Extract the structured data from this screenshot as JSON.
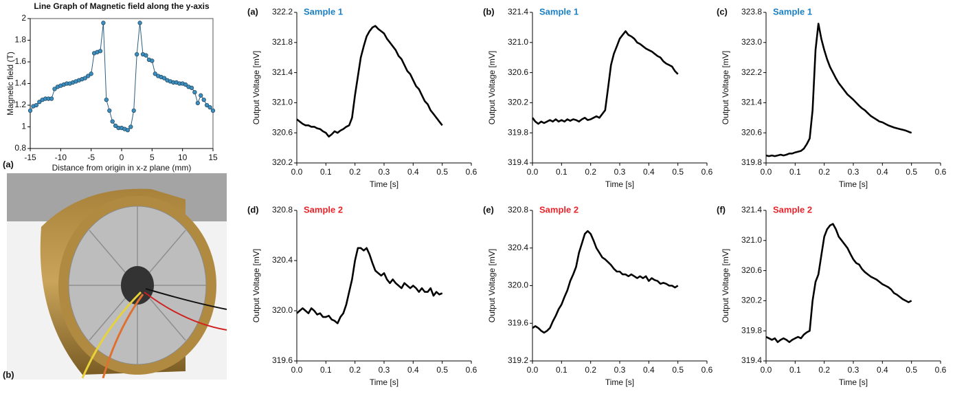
{
  "photo": {
    "label": "(b)"
  },
  "chart_data": [
    {
      "type": "line",
      "title": "Line Graph of Magnetic field along the y-axis",
      "panel_label": "(a)",
      "xlabel": "Distance from origin in x-z plane (mm)",
      "ylabel": "Magnetic field (T)",
      "xlim": [
        -15,
        15
      ],
      "xticks": [
        -15,
        -10,
        -5,
        0,
        5,
        10,
        15
      ],
      "ylim": [
        0.8,
        2
      ],
      "yticks": [
        0.8,
        1,
        1.2,
        1.4,
        1.6,
        1.8,
        2
      ],
      "color": "#3a8fc0",
      "marker": true,
      "box": true,
      "x": [
        -15,
        -14.5,
        -14,
        -13.5,
        -13,
        -12.5,
        -12,
        -11.5,
        -11,
        -10.5,
        -10,
        -9.5,
        -9,
        -8.5,
        -8,
        -7.5,
        -7,
        -6.5,
        -6,
        -5.5,
        -5,
        -4.5,
        -4,
        -3.5,
        -3,
        -2.5,
        -2,
        -1.5,
        -1,
        -0.5,
        0,
        0.5,
        1,
        1.5,
        2,
        2.5,
        3,
        3.5,
        4,
        4.5,
        5,
        5.5,
        6,
        6.5,
        7,
        7.5,
        8,
        8.5,
        9,
        9.5,
        10,
        10.5,
        11,
        11.5,
        12,
        12.5,
        13,
        13.5,
        14,
        14.5,
        15
      ],
      "values": [
        1.15,
        1.19,
        1.2,
        1.23,
        1.25,
        1.26,
        1.26,
        1.26,
        1.35,
        1.37,
        1.38,
        1.39,
        1.4,
        1.4,
        1.41,
        1.42,
        1.43,
        1.44,
        1.45,
        1.47,
        1.49,
        1.68,
        1.69,
        1.7,
        1.96,
        1.25,
        1.15,
        1.05,
        1.01,
        0.99,
        0.99,
        0.98,
        0.97,
        1.0,
        1.15,
        1.67,
        1.96,
        1.67,
        1.66,
        1.62,
        1.61,
        1.49,
        1.47,
        1.46,
        1.45,
        1.43,
        1.42,
        1.41,
        1.41,
        1.4,
        1.4,
        1.39,
        1.37,
        1.36,
        1.32,
        1.22,
        1.29,
        1.25,
        1.2,
        1.18,
        1.15
      ]
    },
    {
      "type": "line",
      "panel_label": "(a)",
      "annotation": {
        "text": "Sample 1",
        "color": "#1a7fc4"
      },
      "xlabel": "Time [s]",
      "ylabel": "Output Voltage [mV]",
      "color": "#000000",
      "xlim": [
        0,
        0.6
      ],
      "xticks": [
        {
          "value": 0,
          "label": "0.0"
        },
        0.1,
        0.2,
        0.3,
        0.4,
        0.5,
        0.6
      ],
      "ylim": [
        320.2,
        322.2
      ],
      "yticks": [
        320.2,
        320.6,
        {
          "value": 321,
          "label": "321.0"
        },
        321.4,
        321.8,
        322.2
      ],
      "x": [
        0,
        0.01,
        0.02,
        0.03,
        0.04,
        0.05,
        0.06,
        0.07,
        0.08,
        0.09,
        0.1,
        0.11,
        0.12,
        0.13,
        0.14,
        0.15,
        0.16,
        0.17,
        0.18,
        0.19,
        0.2,
        0.21,
        0.22,
        0.23,
        0.24,
        0.25,
        0.26,
        0.27,
        0.28,
        0.29,
        0.3,
        0.31,
        0.32,
        0.33,
        0.34,
        0.35,
        0.36,
        0.37,
        0.38,
        0.39,
        0.4,
        0.41,
        0.42,
        0.43,
        0.44,
        0.45,
        0.46,
        0.47,
        0.48,
        0.49,
        0.5
      ],
      "values": [
        320.78,
        320.75,
        320.72,
        320.7,
        320.7,
        320.68,
        320.68,
        320.66,
        320.65,
        320.62,
        320.6,
        320.55,
        320.58,
        320.62,
        320.6,
        320.63,
        320.65,
        320.68,
        320.7,
        320.8,
        321.1,
        321.35,
        321.6,
        321.75,
        321.88,
        321.95,
        322.0,
        322.02,
        321.98,
        321.95,
        321.92,
        321.85,
        321.8,
        321.75,
        321.7,
        321.62,
        321.58,
        321.5,
        321.42,
        321.38,
        321.3,
        321.22,
        321.18,
        321.1,
        321.02,
        320.98,
        320.9,
        320.85,
        320.8,
        320.75,
        320.7
      ]
    },
    {
      "type": "line",
      "panel_label": "(b)",
      "annotation": {
        "text": "Sample 1",
        "color": "#1a7fc4"
      },
      "xlabel": "Time [s]",
      "ylabel": "Output Voltage [mV]",
      "color": "#000000",
      "xlim": [
        0,
        0.6
      ],
      "xticks": [
        {
          "value": 0,
          "label": "0.0"
        },
        0.1,
        0.2,
        0.3,
        0.4,
        0.5,
        0.6
      ],
      "ylim": [
        319.4,
        321.4
      ],
      "yticks": [
        319.4,
        319.8,
        320.2,
        320.6,
        {
          "value": 321,
          "label": "321.0"
        },
        321.4
      ],
      "x": [
        0,
        0.01,
        0.02,
        0.03,
        0.04,
        0.05,
        0.06,
        0.07,
        0.08,
        0.09,
        0.1,
        0.11,
        0.12,
        0.13,
        0.14,
        0.15,
        0.16,
        0.17,
        0.18,
        0.19,
        0.2,
        0.21,
        0.22,
        0.23,
        0.24,
        0.25,
        0.26,
        0.27,
        0.28,
        0.29,
        0.3,
        0.31,
        0.32,
        0.33,
        0.34,
        0.35,
        0.36,
        0.37,
        0.38,
        0.39,
        0.4,
        0.41,
        0.42,
        0.43,
        0.44,
        0.45,
        0.46,
        0.47,
        0.48,
        0.49,
        0.5
      ],
      "values": [
        320.0,
        319.95,
        319.92,
        319.95,
        319.93,
        319.95,
        319.97,
        319.95,
        319.98,
        319.95,
        319.97,
        319.95,
        319.98,
        319.96,
        319.98,
        319.97,
        319.95,
        319.98,
        320.0,
        319.97,
        319.98,
        320.0,
        320.02,
        320.0,
        320.05,
        320.1,
        320.4,
        320.7,
        320.85,
        320.95,
        321.05,
        321.1,
        321.15,
        321.1,
        321.08,
        321.05,
        321.0,
        320.98,
        320.95,
        320.92,
        320.9,
        320.88,
        320.85,
        320.82,
        320.8,
        320.75,
        320.72,
        320.7,
        320.68,
        320.62,
        320.58
      ]
    },
    {
      "type": "line",
      "panel_label": "(c)",
      "annotation": {
        "text": "Sample 1",
        "color": "#1a7fc4"
      },
      "xlabel": "Time [s]",
      "ylabel": "Output Voltage [mV]",
      "color": "#000000",
      "xlim": [
        0,
        0.6
      ],
      "xticks": [
        {
          "value": 0,
          "label": "0.0"
        },
        0.1,
        0.2,
        0.3,
        0.4,
        0.5,
        0.6
      ],
      "ylim": [
        319.8,
        323.8
      ],
      "yticks": [
        319.8,
        320.6,
        321.4,
        322.2,
        {
          "value": 323,
          "label": "323.0"
        },
        323.8
      ],
      "x": [
        0,
        0.01,
        0.02,
        0.03,
        0.04,
        0.05,
        0.06,
        0.07,
        0.08,
        0.09,
        0.1,
        0.11,
        0.12,
        0.13,
        0.14,
        0.15,
        0.16,
        0.17,
        0.18,
        0.19,
        0.2,
        0.21,
        0.22,
        0.23,
        0.24,
        0.25,
        0.26,
        0.27,
        0.28,
        0.29,
        0.3,
        0.31,
        0.32,
        0.33,
        0.34,
        0.35,
        0.36,
        0.37,
        0.38,
        0.39,
        0.4,
        0.41,
        0.42,
        0.43,
        0.44,
        0.45,
        0.46,
        0.47,
        0.48,
        0.49,
        0.5
      ],
      "values": [
        320.0,
        319.98,
        320.0,
        319.98,
        320.0,
        320.02,
        320.0,
        320.02,
        320.05,
        320.05,
        320.08,
        320.1,
        320.12,
        320.18,
        320.3,
        320.45,
        321.2,
        322.8,
        323.5,
        323.1,
        322.8,
        322.55,
        322.35,
        322.2,
        322.05,
        321.92,
        321.82,
        321.72,
        321.62,
        321.55,
        321.48,
        321.4,
        321.32,
        321.25,
        321.2,
        321.12,
        321.05,
        321.0,
        320.95,
        320.9,
        320.88,
        320.84,
        320.8,
        320.77,
        320.74,
        320.72,
        320.7,
        320.68,
        320.66,
        320.63,
        320.6
      ]
    },
    {
      "type": "line",
      "panel_label": "(d)",
      "annotation": {
        "text": "Sample 2",
        "color": "#e8232a"
      },
      "xlabel": "Time [s]",
      "ylabel": "Output Voltage [mV]",
      "color": "#000000",
      "xlim": [
        0,
        0.6
      ],
      "xticks": [
        {
          "value": 0,
          "label": "0.0"
        },
        0.1,
        0.2,
        0.3,
        0.4,
        0.5,
        0.6
      ],
      "ylim": [
        319.6,
        320.8
      ],
      "yticks": [
        319.6,
        {
          "value": 320,
          "label": "320.0"
        },
        320.4,
        320.8
      ],
      "x": [
        0,
        0.01,
        0.02,
        0.03,
        0.04,
        0.05,
        0.06,
        0.07,
        0.08,
        0.09,
        0.1,
        0.11,
        0.12,
        0.13,
        0.14,
        0.15,
        0.16,
        0.17,
        0.18,
        0.19,
        0.2,
        0.21,
        0.22,
        0.23,
        0.24,
        0.25,
        0.26,
        0.27,
        0.28,
        0.29,
        0.3,
        0.31,
        0.32,
        0.33,
        0.34,
        0.35,
        0.36,
        0.37,
        0.38,
        0.39,
        0.4,
        0.41,
        0.42,
        0.43,
        0.44,
        0.45,
        0.46,
        0.47,
        0.48,
        0.49,
        0.5
      ],
      "values": [
        319.98,
        320.0,
        320.02,
        320.0,
        319.98,
        320.02,
        320.0,
        319.97,
        319.98,
        319.95,
        319.95,
        319.96,
        319.93,
        319.92,
        319.9,
        319.95,
        319.98,
        320.05,
        320.15,
        320.25,
        320.4,
        320.5,
        320.5,
        320.48,
        320.5,
        320.45,
        320.38,
        320.32,
        320.3,
        320.28,
        320.3,
        320.25,
        320.22,
        320.25,
        320.22,
        320.2,
        320.18,
        320.22,
        320.2,
        320.18,
        320.2,
        320.18,
        320.15,
        320.18,
        320.15,
        320.15,
        320.18,
        320.12,
        320.15,
        320.13,
        320.14
      ]
    },
    {
      "type": "line",
      "panel_label": "(e)",
      "annotation": {
        "text": "Sample 2",
        "color": "#e8232a"
      },
      "xlabel": "Time [s]",
      "ylabel": "Output Voltage [mV]",
      "color": "#000000",
      "xlim": [
        0,
        0.6
      ],
      "xticks": [
        {
          "value": 0,
          "label": "0.0"
        },
        0.1,
        0.2,
        0.3,
        0.4,
        0.5,
        0.6
      ],
      "ylim": [
        319.2,
        320.8
      ],
      "yticks": [
        319.2,
        319.6,
        {
          "value": 320,
          "label": "320.0"
        },
        320.4,
        320.8
      ],
      "x": [
        0,
        0.01,
        0.02,
        0.03,
        0.04,
        0.05,
        0.06,
        0.07,
        0.08,
        0.09,
        0.1,
        0.11,
        0.12,
        0.13,
        0.14,
        0.15,
        0.16,
        0.17,
        0.18,
        0.19,
        0.2,
        0.21,
        0.22,
        0.23,
        0.24,
        0.25,
        0.26,
        0.27,
        0.28,
        0.29,
        0.3,
        0.31,
        0.32,
        0.33,
        0.34,
        0.35,
        0.36,
        0.37,
        0.38,
        0.39,
        0.4,
        0.41,
        0.42,
        0.43,
        0.44,
        0.45,
        0.46,
        0.47,
        0.48,
        0.49,
        0.5
      ],
      "values": [
        319.55,
        319.57,
        319.55,
        319.52,
        319.5,
        319.52,
        319.55,
        319.62,
        319.68,
        319.75,
        319.8,
        319.88,
        319.95,
        320.05,
        320.12,
        320.2,
        320.35,
        320.45,
        320.55,
        320.58,
        320.55,
        320.48,
        320.4,
        320.35,
        320.3,
        320.28,
        320.25,
        320.22,
        320.18,
        320.15,
        320.15,
        320.12,
        320.12,
        320.1,
        320.12,
        320.1,
        320.08,
        320.1,
        320.08,
        320.1,
        320.05,
        320.08,
        320.06,
        320.05,
        320.02,
        320.03,
        320.02,
        320.0,
        320.0,
        319.98,
        320.0
      ]
    },
    {
      "type": "line",
      "panel_label": "(f)",
      "annotation": {
        "text": "Sample 2",
        "color": "#e8232a"
      },
      "xlabel": "Time [s]",
      "ylabel": "Output Voltage [mV]",
      "color": "#000000",
      "xlim": [
        0,
        0.6
      ],
      "xticks": [
        {
          "value": 0,
          "label": "0.0"
        },
        0.1,
        0.2,
        0.3,
        0.4,
        0.5,
        0.6
      ],
      "ylim": [
        319.4,
        321.4
      ],
      "yticks": [
        319.4,
        319.8,
        320.2,
        320.6,
        {
          "value": 321,
          "label": "321.0"
        },
        321.4
      ],
      "x": [
        0,
        0.01,
        0.02,
        0.03,
        0.04,
        0.05,
        0.06,
        0.07,
        0.08,
        0.09,
        0.1,
        0.11,
        0.12,
        0.13,
        0.14,
        0.15,
        0.16,
        0.17,
        0.18,
        0.19,
        0.2,
        0.21,
        0.22,
        0.23,
        0.24,
        0.25,
        0.26,
        0.27,
        0.28,
        0.29,
        0.3,
        0.31,
        0.32,
        0.33,
        0.34,
        0.35,
        0.36,
        0.37,
        0.38,
        0.39,
        0.4,
        0.41,
        0.42,
        0.43,
        0.44,
        0.45,
        0.46,
        0.47,
        0.48,
        0.49,
        0.5
      ],
      "values": [
        319.72,
        319.7,
        319.68,
        319.7,
        319.65,
        319.68,
        319.7,
        319.68,
        319.65,
        319.68,
        319.7,
        319.72,
        319.7,
        319.75,
        319.78,
        319.8,
        320.2,
        320.45,
        320.55,
        320.8,
        321.05,
        321.15,
        321.2,
        321.22,
        321.15,
        321.05,
        321.0,
        320.95,
        320.9,
        320.82,
        320.75,
        320.7,
        320.68,
        320.62,
        320.58,
        320.55,
        320.52,
        320.5,
        320.48,
        320.45,
        320.42,
        320.4,
        320.38,
        320.35,
        320.3,
        320.28,
        320.25,
        320.22,
        320.2,
        320.18,
        320.2
      ]
    }
  ]
}
